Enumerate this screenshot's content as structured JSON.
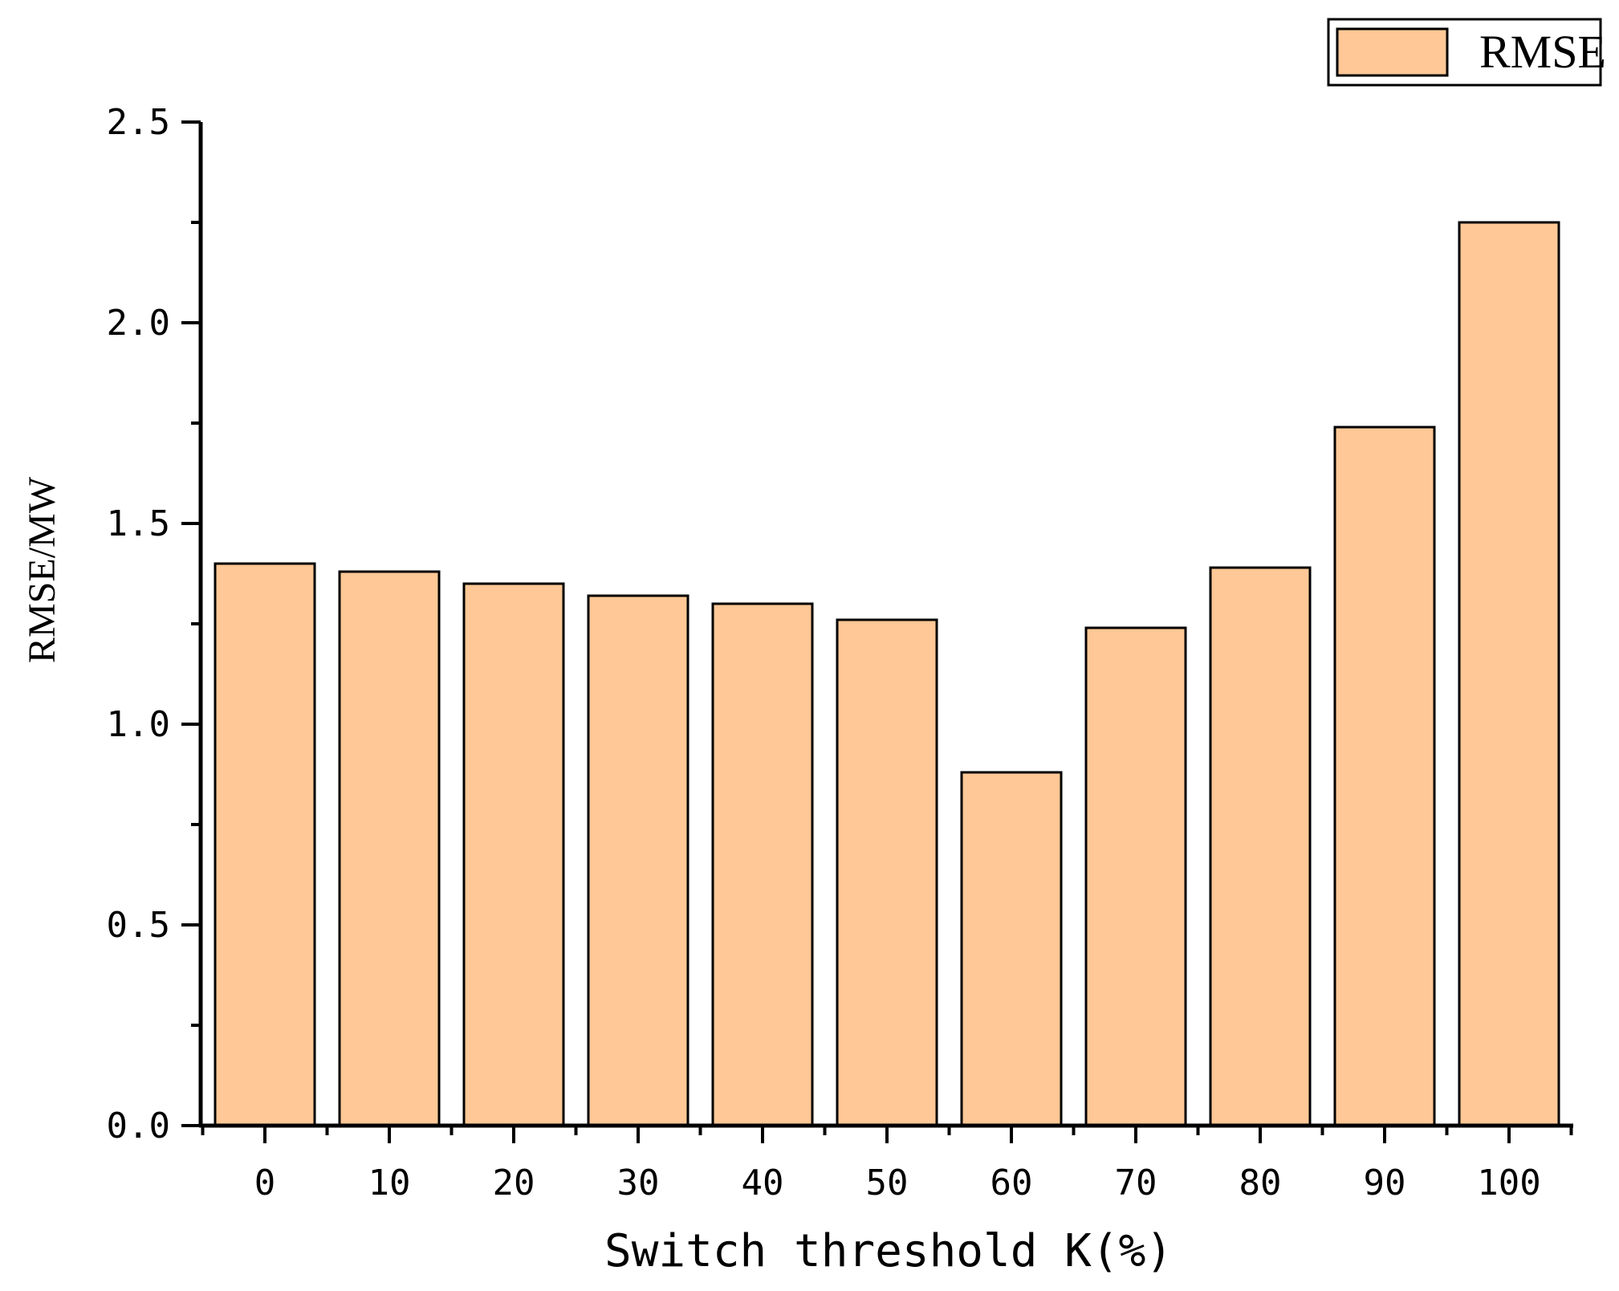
{
  "chart_data": {
    "type": "bar",
    "categories": [
      "0",
      "10",
      "20",
      "30",
      "40",
      "50",
      "60",
      "70",
      "80",
      "90",
      "100"
    ],
    "series": [
      {
        "name": "RMSE",
        "values": [
          1.4,
          1.38,
          1.35,
          1.32,
          1.3,
          1.26,
          0.88,
          1.24,
          1.39,
          1.74,
          2.25
        ]
      }
    ],
    "xlabel": "Switch threshold K(%)",
    "ylabel": "RMSE/MW",
    "ylim": [
      0,
      2.5
    ],
    "y_ticks": [
      "0.0",
      "0.5",
      "1.0",
      "1.5",
      "2.0",
      "2.5"
    ],
    "y_tick_values": [
      0,
      0.5,
      1.0,
      1.5,
      2.0,
      2.5
    ],
    "y_minor_step": 0.25,
    "grid": false,
    "legend_position": "top-right",
    "colors": {
      "bar_fill": "#FFC896",
      "bar_stroke": "#000000",
      "axis": "#000000"
    }
  }
}
